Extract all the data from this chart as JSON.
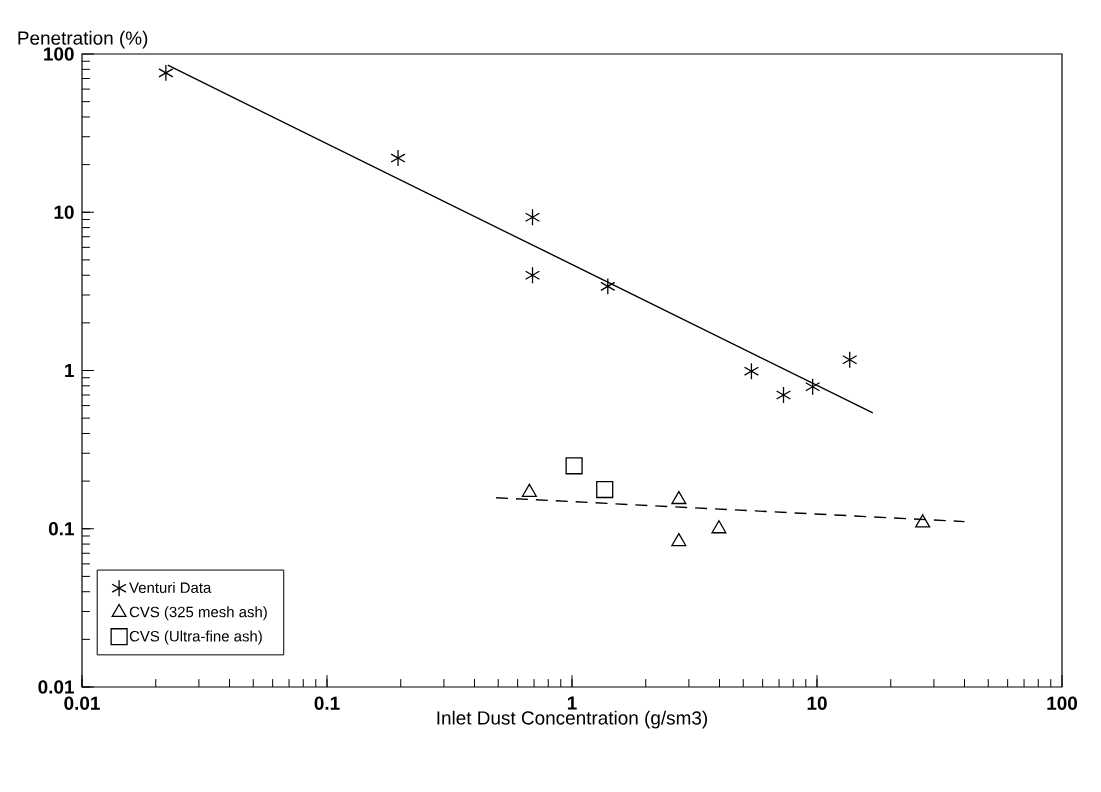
{
  "chart_data": {
    "type": "scatter",
    "xlabel": "Inlet Dust Concentration (g/sm3)",
    "ylabel": "Penetration (%)",
    "log": "xy",
    "xlim": [
      0.01,
      100
    ],
    "ylim": [
      0.01,
      100
    ],
    "xticks": [
      0.01,
      0.1,
      1,
      10,
      100
    ],
    "yticks": [
      0.01,
      0.1,
      1,
      10,
      100
    ],
    "legend": "bottom left",
    "grid": false,
    "series": [
      {
        "name": "Venturi Data",
        "marker": "cross",
        "color": "#000000",
        "x": [
          0.022,
          0.195,
          0.69,
          0.69,
          1.4,
          5.4,
          7.3,
          9.6,
          13.6
        ],
        "values": [
          76,
          22,
          9.3,
          4.0,
          3.4,
          0.99,
          0.7,
          0.79,
          1.17
        ]
      },
      {
        "name": "CVS (325 mesh ash)",
        "marker": "triangle",
        "color": "#000000",
        "x": [
          0.67,
          2.73,
          2.73,
          3.98,
          27
        ],
        "values": [
          0.17,
          0.153,
          0.083,
          0.1,
          0.109
        ]
      },
      {
        "name": "CVS (Ultra-fine ash)",
        "marker": "square",
        "color": "#000000",
        "x": [
          1.02,
          1.36
        ],
        "values": [
          0.25,
          0.177
        ]
      },
      {
        "type": "line",
        "line_style": "solid",
        "marker": "none",
        "color": "#000000",
        "x": [
          0.0224,
          16.9
        ],
        "values": [
          85,
          0.54
        ]
      },
      {
        "type": "line",
        "line_style": "dashed",
        "marker": "none",
        "color": "#000000",
        "x": [
          0.49,
          40
        ],
        "values": [
          0.157,
          0.111
        ]
      }
    ]
  }
}
